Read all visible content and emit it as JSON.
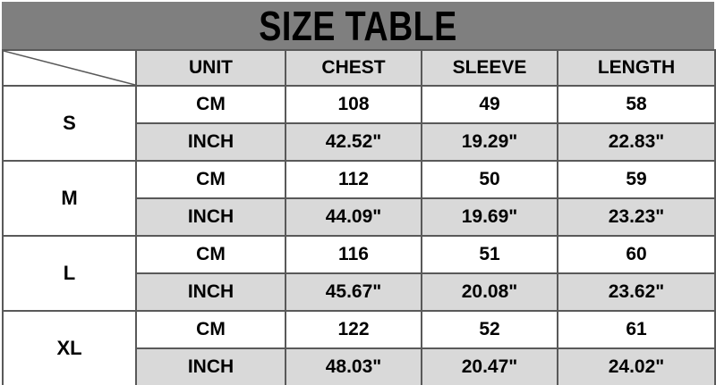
{
  "title": "SIZE TABLE",
  "colors": {
    "banner_bg": "#7f7f7f",
    "banner_text": "#000000",
    "header_bg": "#d9d9d9",
    "row_bg": "#ffffff",
    "row_alt_bg": "#d9d9d9",
    "border": "#595959",
    "outer_border": "#1f1f1f"
  },
  "chart_data": {
    "type": "table",
    "title": "SIZE TABLE",
    "corner_label": "",
    "column_headers": [
      "UNIT",
      "CHEST",
      "SLEEVE",
      "LENGTH"
    ],
    "unit_labels": [
      "CM",
      "INCH"
    ],
    "row_groups": [
      {
        "size": "S",
        "rows": [
          {
            "unit": "CM",
            "chest": "108",
            "sleeve": "49",
            "length": "58"
          },
          {
            "unit": "INCH",
            "chest": "42.52\"",
            "sleeve": "19.29\"",
            "length": "22.83\""
          }
        ]
      },
      {
        "size": "M",
        "rows": [
          {
            "unit": "CM",
            "chest": "112",
            "sleeve": "50",
            "length": "59"
          },
          {
            "unit": "INCH",
            "chest": "44.09\"",
            "sleeve": "19.69\"",
            "length": "23.23\""
          }
        ]
      },
      {
        "size": "L",
        "rows": [
          {
            "unit": "CM",
            "chest": "116",
            "sleeve": "51",
            "length": "60"
          },
          {
            "unit": "INCH",
            "chest": "45.67\"",
            "sleeve": "20.08\"",
            "length": "23.62\""
          }
        ]
      },
      {
        "size": "XL",
        "rows": [
          {
            "unit": "CM",
            "chest": "122",
            "sleeve": "52",
            "length": "61"
          },
          {
            "unit": "INCH",
            "chest": "48.03\"",
            "sleeve": "20.47\"",
            "length": "24.02\""
          }
        ]
      }
    ]
  }
}
